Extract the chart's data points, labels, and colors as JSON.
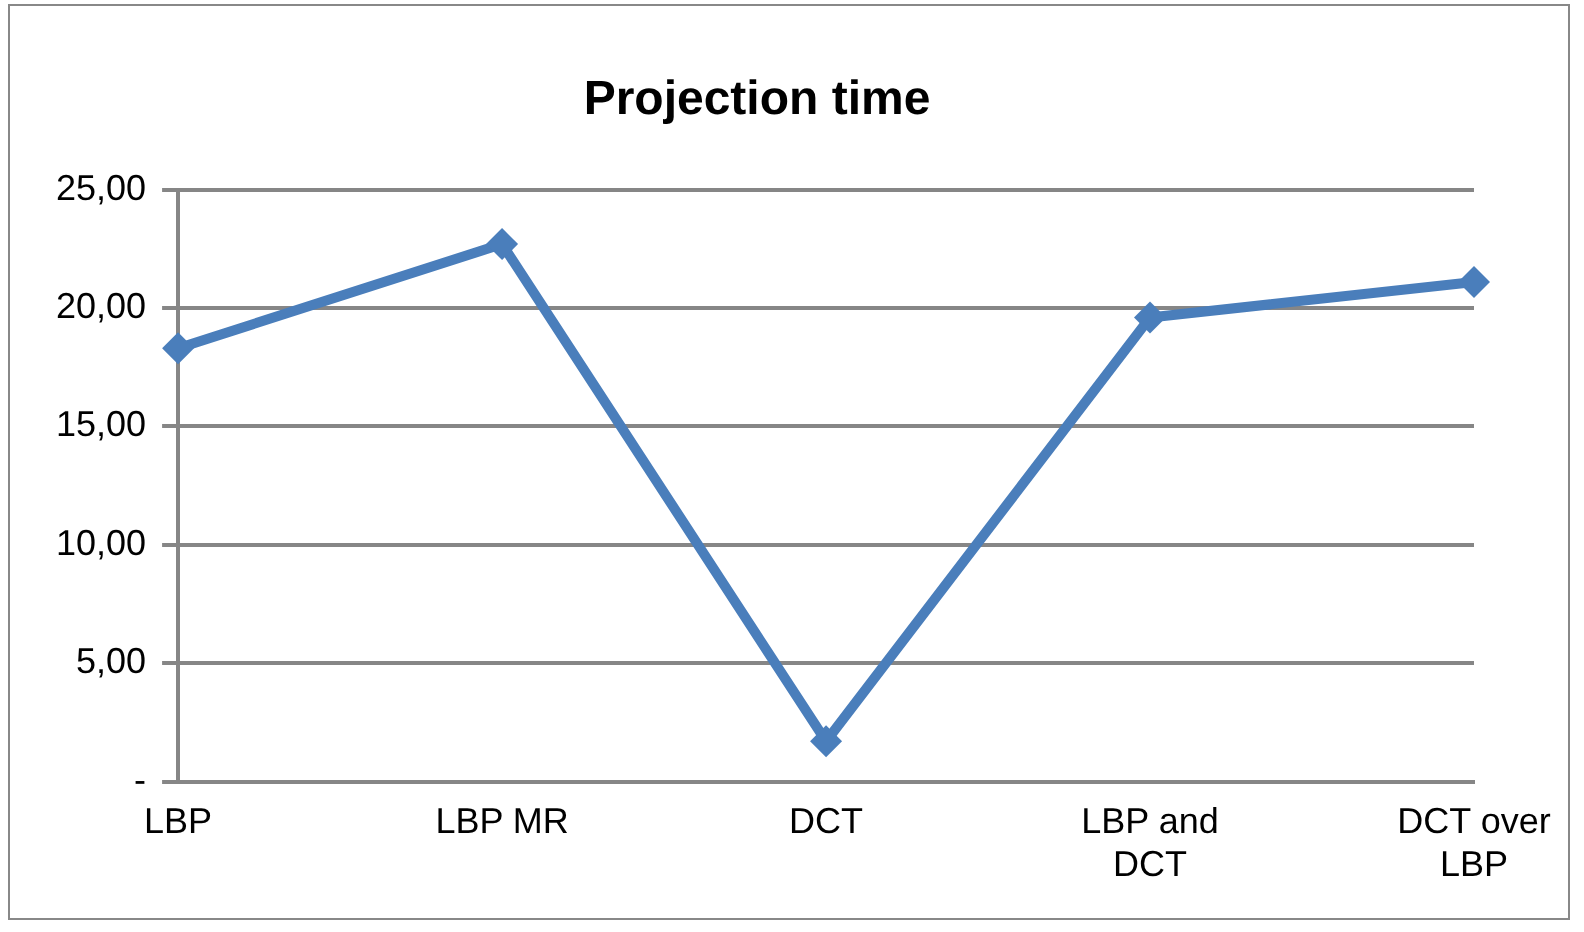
{
  "chart_data": {
    "type": "line",
    "title": "Projection time",
    "categories": [
      "LBP",
      "LBP MR",
      "DCT",
      "LBP and DCT",
      "DCT over LBP"
    ],
    "series": [
      {
        "color": "#4a7ebb",
        "values": [
          18.3,
          22.7,
          1.7,
          19.6,
          21.1
        ]
      }
    ],
    "ylim": [
      0,
      25
    ],
    "yticks": [
      {
        "value": 0,
        "label": "-"
      },
      {
        "value": 5,
        "label": "5,00"
      },
      {
        "value": 10,
        "label": "10,00"
      },
      {
        "value": 15,
        "label": "15,00"
      },
      {
        "value": 20,
        "label": "20,00"
      },
      {
        "value": 25,
        "label": "25,00"
      }
    ],
    "grid": "y",
    "legend": false,
    "marker": "diamond",
    "line_style": "solid"
  }
}
